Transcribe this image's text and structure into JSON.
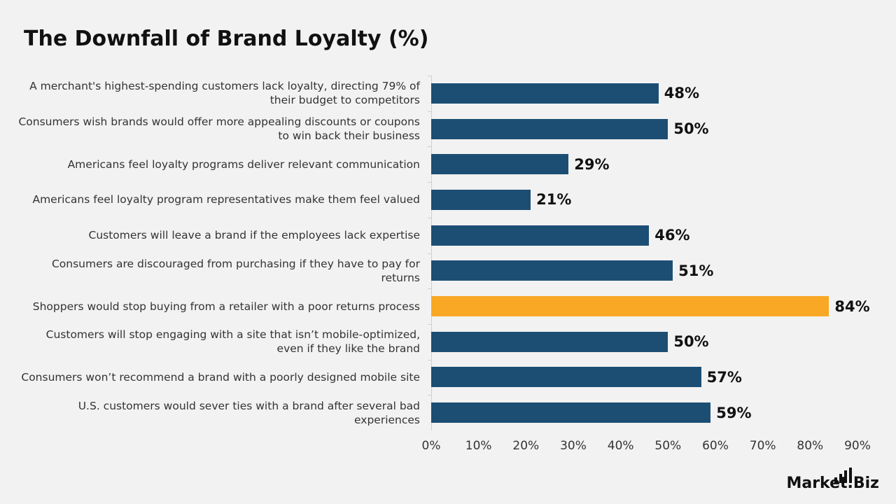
{
  "chart_data": {
    "type": "bar",
    "orientation": "horizontal",
    "title": "The Downfall of Brand Loyalty (%)",
    "categories": [
      "A merchant's highest-spending customers lack loyalty, directing 79% of their budget to competitors",
      "Consumers wish brands would offer more appealing discounts or coupons to win back their business",
      "Americans feel loyalty programs deliver relevant communication",
      "Americans feel loyalty program representatives make them feel valued",
      "Customers will leave a brand if the employees lack expertise",
      "Consumers are discouraged from purchasing if they have to pay for returns",
      "Shoppers would stop buying from a retailer with a poor returns process",
      "Customers will stop engaging with a site that isn’t mobile-optimized, even if they like the brand",
      "Consumers  won’t recommend a brand with a poorly designed mobile site",
      "U.S. customers would sever ties with a brand after several bad experiences"
    ],
    "values": [
      48,
      50,
      29,
      21,
      46,
      51,
      84,
      50,
      57,
      59
    ],
    "value_labels": [
      "48%",
      "50%",
      "29%",
      "21%",
      "46%",
      "51%",
      "84%",
      "50%",
      "57%",
      "59%"
    ],
    "colors": [
      "#1c4e74",
      "#1c4e74",
      "#1c4e74",
      "#1c4e74",
      "#1c4e74",
      "#1c4e74",
      "#f9a825",
      "#1c4e74",
      "#1c4e74",
      "#1c4e74"
    ],
    "xlim": [
      0,
      90
    ],
    "xticks": [
      {
        "value": 0,
        "label": "0%"
      },
      {
        "value": 10,
        "label": "10%"
      },
      {
        "value": 20,
        "label": "20%"
      },
      {
        "value": 30,
        "label": "30%"
      },
      {
        "value": 40,
        "label": "40%"
      },
      {
        "value": 50,
        "label": "50%"
      },
      {
        "value": 60,
        "label": "60%"
      },
      {
        "value": 70,
        "label": "70%"
      },
      {
        "value": 80,
        "label": "80%"
      },
      {
        "value": 90,
        "label": "90%"
      }
    ],
    "grid": false
  },
  "logo": "Market.Biz"
}
